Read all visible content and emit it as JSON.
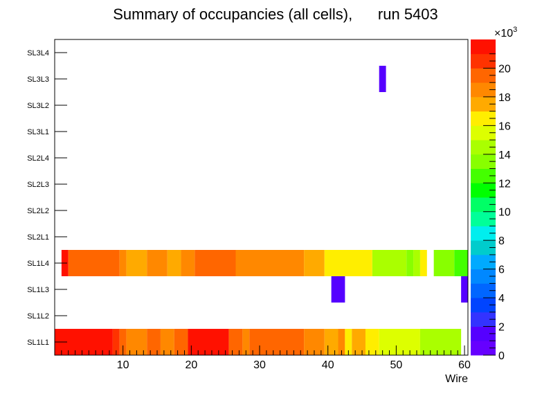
{
  "chart_data": {
    "type": "heatmap",
    "title": "Summary of occupancies (all cells),      run 5403",
    "xlabel": "Wire",
    "ylabel": "",
    "xlim": [
      0,
      60.5
    ],
    "x_ticks": [
      10,
      20,
      30,
      40,
      50,
      60
    ],
    "y_categories": [
      "SL1L1",
      "SL1L2",
      "SL1L3",
      "SL1L4",
      "SL2L1",
      "SL2L2",
      "SL2L3",
      "SL2L4",
      "SL3L1",
      "SL3L2",
      "SL3L3",
      "SL3L4"
    ],
    "z_exponent_label": "×10",
    "z_exponent_power": "3",
    "z_range": [
      0,
      22000
    ],
    "z_ticks": [
      0,
      2,
      4,
      6,
      8,
      10,
      12,
      14,
      16,
      18,
      20
    ],
    "palette": [
      "#6600ff",
      "#5500ff",
      "#3333ff",
      "#0044ff",
      "#0066ff",
      "#0088ff",
      "#00aaff",
      "#00cccc",
      "#00eeee",
      "#00ff99",
      "#00ff66",
      "#00ff00",
      "#44ff00",
      "#88ff00",
      "#aaff00",
      "#ddff00",
      "#ffee00",
      "#ffaa00",
      "#ff8800",
      "#ff6600",
      "#ff3300",
      "#ff1100"
    ],
    "cells": [
      {
        "layer": "SL1L1",
        "from": 0,
        "to": 8.5,
        "z": 21000
      },
      {
        "layer": "SL1L1",
        "from": 8.5,
        "to": 9.5,
        "z": 20000
      },
      {
        "layer": "SL1L1",
        "from": 9.5,
        "to": 10.5,
        "z": 19000
      },
      {
        "layer": "SL1L1",
        "from": 10.5,
        "to": 13.5,
        "z": 18000
      },
      {
        "layer": "SL1L1",
        "from": 13.5,
        "to": 15.5,
        "z": 19000
      },
      {
        "layer": "SL1L1",
        "from": 15.5,
        "to": 17.5,
        "z": 18000
      },
      {
        "layer": "SL1L1",
        "from": 17.5,
        "to": 19.5,
        "z": 19000
      },
      {
        "layer": "SL1L1",
        "from": 19.5,
        "to": 25.5,
        "z": 21000
      },
      {
        "layer": "SL1L1",
        "from": 25.5,
        "to": 27.5,
        "z": 19000
      },
      {
        "layer": "SL1L1",
        "from": 27.5,
        "to": 28.5,
        "z": 18000
      },
      {
        "layer": "SL1L1",
        "from": 28.5,
        "to": 36.5,
        "z": 19000
      },
      {
        "layer": "SL1L1",
        "from": 36.5,
        "to": 39.5,
        "z": 18000
      },
      {
        "layer": "SL1L1",
        "from": 39.5,
        "to": 41.5,
        "z": 17000
      },
      {
        "layer": "SL1L1",
        "from": 41.5,
        "to": 42.5,
        "z": 18000
      },
      {
        "layer": "SL1L1",
        "from": 42.5,
        "to": 43.5,
        "z": 16000
      },
      {
        "layer": "SL1L1",
        "from": 43.5,
        "to": 45.5,
        "z": 17000
      },
      {
        "layer": "SL1L1",
        "from": 45.5,
        "to": 47.5,
        "z": 16000
      },
      {
        "layer": "SL1L1",
        "from": 47.5,
        "to": 53.5,
        "z": 15500
      },
      {
        "layer": "SL1L1",
        "from": 53.5,
        "to": 59.5,
        "z": 14500
      },
      {
        "layer": "SL1L3",
        "from": 40.5,
        "to": 42.5,
        "z": 1000
      },
      {
        "layer": "SL1L3",
        "from": 59.5,
        "to": 60.5,
        "z": 1000
      },
      {
        "layer": "SL1L4",
        "from": 1,
        "to": 2,
        "z": 21000
      },
      {
        "layer": "SL1L4",
        "from": 2,
        "to": 9.5,
        "z": 19000
      },
      {
        "layer": "SL1L4",
        "from": 9.5,
        "to": 10.5,
        "z": 18000
      },
      {
        "layer": "SL1L4",
        "from": 10.5,
        "to": 13.5,
        "z": 17000
      },
      {
        "layer": "SL1L4",
        "from": 13.5,
        "to": 16.5,
        "z": 18000
      },
      {
        "layer": "SL1L4",
        "from": 16.5,
        "to": 18.5,
        "z": 17000
      },
      {
        "layer": "SL1L4",
        "from": 18.5,
        "to": 20.5,
        "z": 18000
      },
      {
        "layer": "SL1L4",
        "from": 20.5,
        "to": 26.5,
        "z": 19000
      },
      {
        "layer": "SL1L4",
        "from": 26.5,
        "to": 36.5,
        "z": 18000
      },
      {
        "layer": "SL1L4",
        "from": 36.5,
        "to": 39.5,
        "z": 17000
      },
      {
        "layer": "SL1L4",
        "from": 39.5,
        "to": 46.5,
        "z": 16000
      },
      {
        "layer": "SL1L4",
        "from": 46.5,
        "to": 51.5,
        "z": 14500
      },
      {
        "layer": "SL1L4",
        "from": 51.5,
        "to": 52.5,
        "z": 13500
      },
      {
        "layer": "SL1L4",
        "from": 52.5,
        "to": 53.5,
        "z": 15000
      },
      {
        "layer": "SL1L4",
        "from": 53.5,
        "to": 54.5,
        "z": 16000
      },
      {
        "layer": "SL1L4",
        "from": 55.5,
        "to": 58.5,
        "z": 13500
      },
      {
        "layer": "SL1L4",
        "from": 58.5,
        "to": 60.5,
        "z": 12500
      },
      {
        "layer": "SL3L3",
        "from": 47.5,
        "to": 48.5,
        "z": 1000
      }
    ]
  }
}
